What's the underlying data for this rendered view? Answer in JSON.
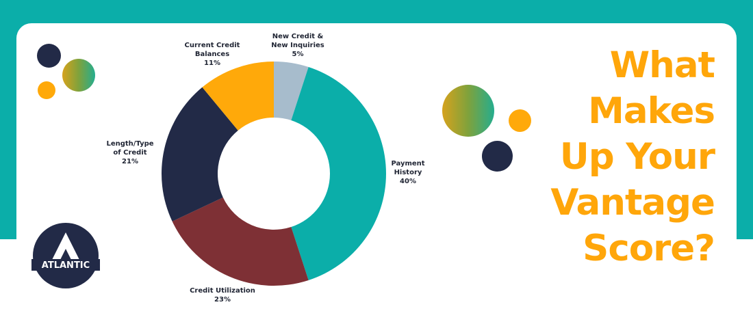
{
  "headline": [
    "What",
    "Makes",
    "Up Your",
    "Vantage",
    "Score?"
  ],
  "logo": {
    "text": "ATLANTIC"
  },
  "colors": {
    "teal": "#0baea9",
    "navy": "#222a47",
    "orange": "#ffa90a",
    "maroon": "#7e3035",
    "gray_blue": "#a7bccc",
    "headline": "#ffa60a"
  },
  "chart_data": {
    "type": "pie",
    "style": "donut",
    "title": "",
    "legend": "none",
    "slices": [
      {
        "label": [
          "New Credit &",
          "New Inquiries"
        ],
        "value": 5,
        "value_label": "5%",
        "color": "#a7bccc"
      },
      {
        "label": [
          "Payment",
          "History"
        ],
        "value": 40,
        "value_label": "40%",
        "color": "#0baea9"
      },
      {
        "label": [
          "Credit Utilization"
        ],
        "value": 23,
        "value_label": "23%",
        "color": "#7e3035"
      },
      {
        "label": [
          "Length/Type",
          "of Credit"
        ],
        "value": 21,
        "value_label": "21%",
        "color": "#222a47"
      },
      {
        "label": [
          "Current Credit",
          "Balances"
        ],
        "value": 11,
        "value_label": "11%",
        "color": "#ffa90a"
      }
    ]
  }
}
